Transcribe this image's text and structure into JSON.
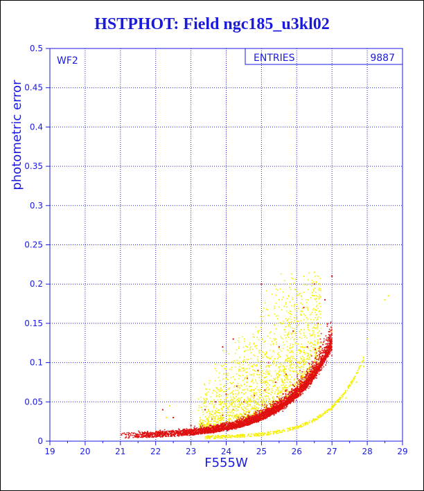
{
  "title": "HSTPHOT: Field ngc185_u3kl02",
  "colors": {
    "axis": "#1a1adf",
    "grid": "#2020c0",
    "series_red": "#e01010",
    "series_yellow": "#f5f000"
  },
  "chart_data": {
    "type": "scatter",
    "title": "HSTPHOT: Field ngc185_u3kl02",
    "xlabel": "F555W",
    "ylabel": "photometric error",
    "xlim": [
      19,
      29
    ],
    "ylim": [
      0,
      0.5
    ],
    "x_ticks": [
      19,
      20,
      21,
      22,
      23,
      24,
      25,
      26,
      27,
      28,
      29
    ],
    "y_ticks": [
      0,
      0.05,
      0.1,
      0.15,
      0.2,
      0.25,
      0.3,
      0.35,
      0.4,
      0.45,
      0.5
    ],
    "grid": true,
    "panel_label": "WF2",
    "stats": {
      "label": "ENTRIES",
      "value": "9887"
    },
    "series": [
      {
        "color": "#e01010",
        "envelope": "error grows with magnitude from about 0.005 at F555W 21 to about 0.21 at F555W 27",
        "points": [
          [
            21.5,
            0.006
          ],
          [
            22.0,
            0.008
          ],
          [
            22.4,
            0.012
          ],
          [
            22.8,
            0.015
          ],
          [
            23.0,
            0.02
          ],
          [
            23.3,
            0.022
          ],
          [
            23.6,
            0.028
          ],
          [
            23.9,
            0.033
          ],
          [
            24.2,
            0.04
          ],
          [
            24.5,
            0.05
          ],
          [
            24.8,
            0.058
          ],
          [
            25.1,
            0.065
          ],
          [
            25.4,
            0.075
          ],
          [
            25.7,
            0.085
          ],
          [
            26.0,
            0.1
          ],
          [
            26.3,
            0.12
          ],
          [
            26.6,
            0.15
          ],
          [
            26.8,
            0.18
          ],
          [
            27.0,
            0.21
          ],
          [
            26.5,
            0.2
          ],
          [
            26.2,
            0.17
          ],
          [
            25.9,
            0.14
          ],
          [
            25.5,
            0.12
          ],
          [
            25.2,
            0.1
          ],
          [
            24.9,
            0.09
          ],
          [
            24.6,
            0.08
          ],
          [
            24.3,
            0.07
          ],
          [
            24.0,
            0.06
          ],
          [
            23.7,
            0.05
          ],
          [
            23.4,
            0.04
          ],
          [
            22.5,
            0.03
          ],
          [
            22.2,
            0.04
          ],
          [
            25.0,
            0.2
          ],
          [
            24.2,
            0.13
          ],
          [
            23.9,
            0.12
          ]
        ]
      },
      {
        "color": "#f5f000",
        "envelope": "upper scatter between F555W 23.5 and 26.5 up to error 0.21, plus a lower sequence from about (23.5, 0.005) to (27.9, 0.095)",
        "points": [
          [
            24.0,
            0.08
          ],
          [
            24.3,
            0.1
          ],
          [
            24.6,
            0.12
          ],
          [
            24.9,
            0.14
          ],
          [
            25.2,
            0.16
          ],
          [
            25.5,
            0.18
          ],
          [
            25.8,
            0.2
          ],
          [
            26.2,
            0.21
          ],
          [
            26.5,
            0.215
          ],
          [
            24.5,
            0.06
          ],
          [
            24.8,
            0.09
          ],
          [
            25.1,
            0.11
          ],
          [
            25.4,
            0.13
          ],
          [
            25.6,
            0.15
          ],
          [
            23.8,
            0.05
          ],
          [
            23.5,
            0.04
          ],
          [
            22.4,
            0.045
          ],
          [
            22.3,
            0.03
          ],
          [
            23.5,
            0.005
          ],
          [
            24.0,
            0.006
          ],
          [
            24.5,
            0.008
          ],
          [
            25.0,
            0.01
          ],
          [
            25.5,
            0.013
          ],
          [
            26.0,
            0.018
          ],
          [
            26.5,
            0.026
          ],
          [
            27.0,
            0.04
          ],
          [
            27.4,
            0.055
          ],
          [
            27.7,
            0.075
          ],
          [
            27.9,
            0.095
          ],
          [
            28.0,
            0.13
          ],
          [
            28.6,
            0.185
          ],
          [
            28.5,
            0.18
          ],
          [
            27.0,
            0.14
          ]
        ]
      }
    ]
  }
}
